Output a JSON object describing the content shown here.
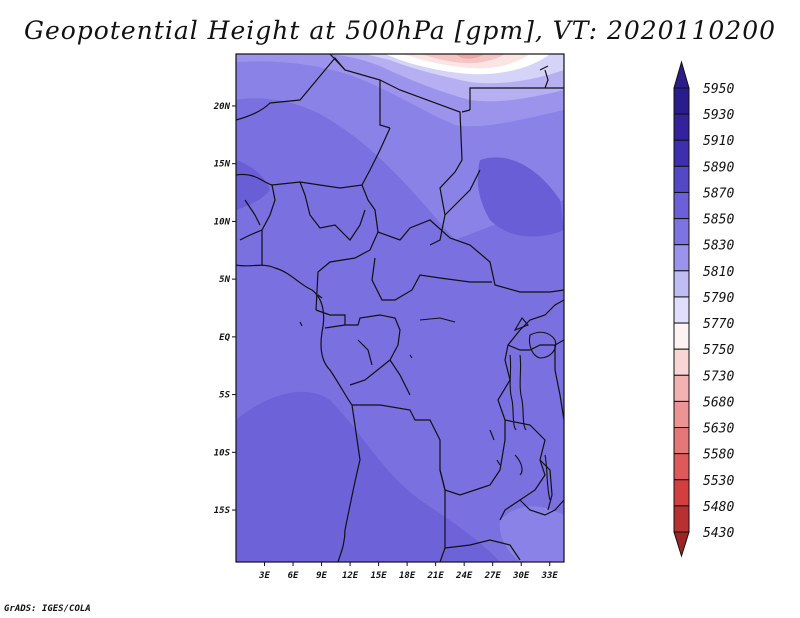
{
  "title": "Geopotential Height at 500hPa [gpm], VT: 2020110200",
  "credit": "GrADS: IGES/COLA",
  "map": {
    "lon_range": [
      0,
      34.5
    ],
    "lat_range": [
      -19.5,
      24.5
    ],
    "lon_ticks": [
      {
        "value": 3,
        "label": "3E"
      },
      {
        "value": 6,
        "label": "6E"
      },
      {
        "value": 9,
        "label": "9E"
      },
      {
        "value": 12,
        "label": "12E"
      },
      {
        "value": 15,
        "label": "15E"
      },
      {
        "value": 18,
        "label": "18E"
      },
      {
        "value": 21,
        "label": "21E"
      },
      {
        "value": 24,
        "label": "24E"
      },
      {
        "value": 27,
        "label": "27E"
      },
      {
        "value": 30,
        "label": "30E"
      },
      {
        "value": 33,
        "label": "33E"
      }
    ],
    "lat_ticks": [
      {
        "value": 20,
        "label": "20N"
      },
      {
        "value": 15,
        "label": "15N"
      },
      {
        "value": 10,
        "label": "10N"
      },
      {
        "value": 5,
        "label": "5N"
      },
      {
        "value": 0,
        "label": "EQ"
      },
      {
        "value": -5,
        "label": "5S"
      },
      {
        "value": -10,
        "label": "10S"
      },
      {
        "value": -15,
        "label": "15S"
      }
    ]
  },
  "colorbar": {
    "levels": [
      {
        "label": "5950",
        "color": "#2b1c8c"
      },
      {
        "label": "5930",
        "color": "#33229c"
      },
      {
        "label": "5910",
        "color": "#3d2fae"
      },
      {
        "label": "5890",
        "color": "#5548c6"
      },
      {
        "label": "5870",
        "color": "#6c5fd8"
      },
      {
        "label": "5850",
        "color": "#7d74e2"
      },
      {
        "label": "5830",
        "color": "#9c94ec"
      },
      {
        "label": "5810",
        "color": "#c0bcf4"
      },
      {
        "label": "5790",
        "color": "#e0defb"
      },
      {
        "label": "5770",
        "color": "#fdf3f3"
      },
      {
        "label": "5750",
        "color": "#f8d6d6"
      },
      {
        "label": "5730",
        "color": "#f2b2b2"
      },
      {
        "label": "5680",
        "color": "#ea9494"
      },
      {
        "label": "5630",
        "color": "#e47878"
      },
      {
        "label": "5580",
        "color": "#dc5a5a"
      },
      {
        "label": "5530",
        "color": "#d23f3f"
      },
      {
        "label": "5480",
        "color": "#b83030"
      },
      {
        "label": "5430",
        "color": "#9c2424"
      }
    ]
  }
}
